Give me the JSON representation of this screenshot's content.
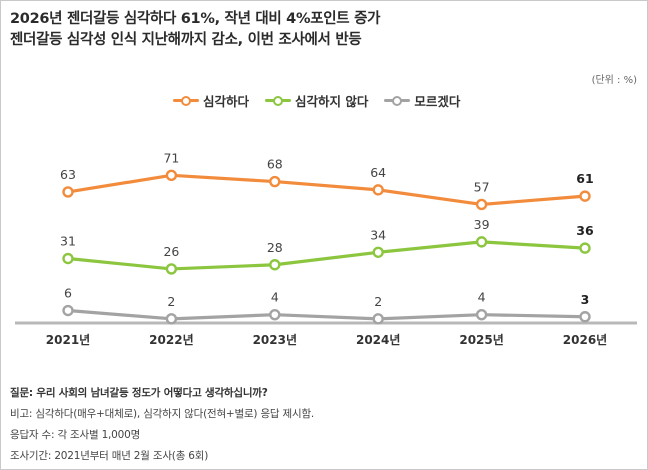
{
  "title": {
    "line1": "2026년 젠더갈등 심각하다 61%, 작년 대비 4%포인트 증가",
    "line2": "젠더갈등 심각성 인식 지난해까지 감소, 이번 조사에서 반등"
  },
  "unit": "(단위 : %)",
  "colors": {
    "serious": "#f28c3c",
    "not_serious": "#8cc63f",
    "dont_know": "#a3a3a3",
    "axis": "#b8b8b8"
  },
  "chart_data": {
    "type": "line",
    "categories": [
      "2021년",
      "2022년",
      "2023년",
      "2024년",
      "2025년",
      "2026년"
    ],
    "series": [
      {
        "name": "심각하다",
        "values": [
          63,
          71,
          68,
          64,
          57,
          61
        ]
      },
      {
        "name": "심각하지 않다",
        "values": [
          31,
          26,
          28,
          34,
          39,
          36
        ]
      },
      {
        "name": "모르겠다",
        "values": [
          6,
          2,
          4,
          2,
          4,
          3
        ]
      }
    ],
    "ylim": [
      0,
      75
    ],
    "legend": "top",
    "grid": false
  },
  "notes": {
    "question": "질문: 우리 사회의 남녀갈등 정도가 어떻다고 생각하십니까?",
    "remark": "비고: 심각하다(매우+대체로), 심각하지 않다(전혀+별로) 응답 제시함.",
    "sample": "응답자 수: 각 조사별 1,000명",
    "period": "조사기간: 2021년부터 매년 2월 조사(총 6회)"
  }
}
